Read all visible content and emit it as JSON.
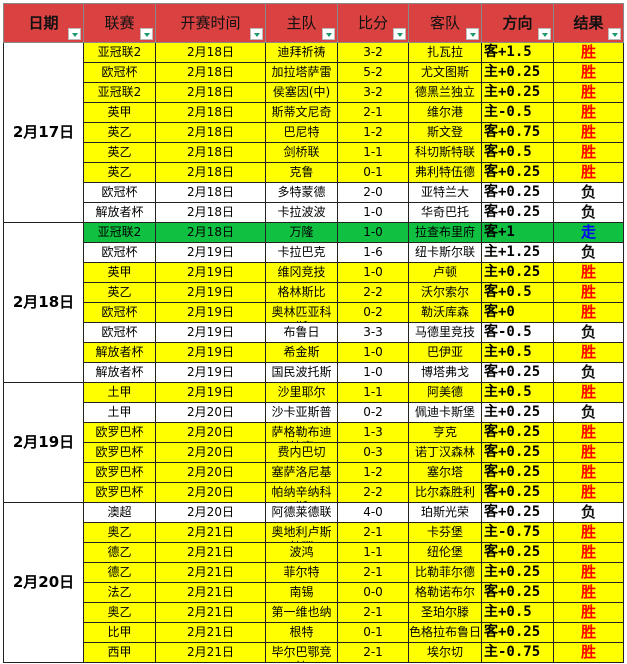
{
  "headers": [
    "日期",
    "联赛",
    "开赛时间",
    "主队",
    "比分",
    "客队",
    "方向",
    "结果"
  ],
  "colors": {
    "header": "#da4242",
    "win_row": "#ffff00",
    "lose_row": "#ffffff",
    "push_row": "#10c040",
    "win_text": "#ff0000",
    "push_text": "#0000ff"
  },
  "groups": [
    {
      "date": "2月17日",
      "rows": [
        {
          "league": "亚冠联2",
          "time": "2月18日",
          "home": "迪拜祈祷",
          "score": "3-2",
          "away": "扎瓦拉",
          "direction": "客+1.5",
          "result": "胜"
        },
        {
          "league": "欧冠杯",
          "time": "2月18日",
          "home": "加拉塔萨雷",
          "score": "5-2",
          "away": "尤文图斯",
          "direction": "主+0.25",
          "result": "胜"
        },
        {
          "league": "亚冠联2",
          "time": "2月18日",
          "home": "侯塞因(中)",
          "score": "3-2",
          "away": "德黑兰独立",
          "direction": "主+0.25",
          "result": "胜"
        },
        {
          "league": "英甲",
          "time": "2月18日",
          "home": "斯蒂文尼奇",
          "score": "2-1",
          "away": "维尔港",
          "direction": "主-0.5",
          "result": "胜"
        },
        {
          "league": "英乙",
          "time": "2月18日",
          "home": "巴尼特",
          "score": "1-2",
          "away": "斯文登",
          "direction": "客+0.75",
          "result": "胜"
        },
        {
          "league": "英乙",
          "time": "2月18日",
          "home": "剑桥联",
          "score": "1-1",
          "away": "科切斯特联",
          "direction": "客+0.5",
          "result": "胜"
        },
        {
          "league": "英乙",
          "time": "2月18日",
          "home": "克鲁",
          "score": "0-1",
          "away": "弗利特伍德",
          "direction": "客+0.25",
          "result": "胜"
        },
        {
          "league": "欧冠杯",
          "time": "2月18日",
          "home": "多特蒙德",
          "score": "2-0",
          "away": "亚特兰大",
          "direction": "客+0.25",
          "result": "负"
        },
        {
          "league": "解放者杯",
          "time": "2月18日",
          "home": "卡拉波波",
          "score": "1-0",
          "away": "华奇巴托",
          "direction": "客+0.25",
          "result": "负"
        }
      ]
    },
    {
      "date": "2月18日",
      "rows": [
        {
          "league": "亚冠联2",
          "time": "2月18日",
          "home": "万隆",
          "score": "1-0",
          "away": "拉查布里府",
          "direction": "客+1",
          "result": "走"
        },
        {
          "league": "欧冠杯",
          "time": "2月19日",
          "home": "卡拉巴克",
          "score": "1-6",
          "away": "纽卡斯尔联",
          "direction": "主+1.25",
          "result": "负"
        },
        {
          "league": "英甲",
          "time": "2月19日",
          "home": "维冈竞技",
          "score": "1-0",
          "away": "卢顿",
          "direction": "主+0.25",
          "result": "胜"
        },
        {
          "league": "英乙",
          "time": "2月19日",
          "home": "格林斯比",
          "score": "2-2",
          "away": "沃尔索尔",
          "direction": "客+0.5",
          "result": "胜"
        },
        {
          "league": "欧冠杯",
          "time": "2月19日",
          "home": "奥林匹亚科斯",
          "score": "0-2",
          "away": "勒沃库森",
          "direction": "客+0",
          "result": "胜"
        },
        {
          "league": "欧冠杯",
          "time": "2月19日",
          "home": "布鲁日",
          "score": "3-3",
          "away": "马德里竞技",
          "direction": "客-0.5",
          "result": "负"
        },
        {
          "league": "解放者杯",
          "time": "2月19日",
          "home": "希金斯",
          "score": "1-0",
          "away": "巴伊亚",
          "direction": "主+0.5",
          "result": "胜"
        },
        {
          "league": "解放者杯",
          "time": "2月19日",
          "home": "国民波托斯",
          "score": "1-0",
          "away": "博塔弗戈",
          "direction": "客+0.25",
          "result": "负"
        }
      ]
    },
    {
      "date": "2月19日",
      "rows": [
        {
          "league": "土甲",
          "time": "2月19日",
          "home": "沙里耶尔",
          "score": "1-1",
          "away": "阿美德",
          "direction": "主+0.5",
          "result": "胜"
        },
        {
          "league": "土甲",
          "time": "2月20日",
          "home": "沙卡亚斯普",
          "score": "0-2",
          "away": "佩迪卡斯堡",
          "direction": "主+0.25",
          "result": "负"
        },
        {
          "league": "欧罗巴杯",
          "time": "2月20日",
          "home": "萨格勒布迪纳摩",
          "score": "1-3",
          "away": "亨克",
          "direction": "客+0.25",
          "result": "胜"
        },
        {
          "league": "欧罗巴杯",
          "time": "2月20日",
          "home": "费内巴切",
          "score": "0-3",
          "away": "诺丁汉森林",
          "direction": "客+0.25",
          "result": "胜"
        },
        {
          "league": "欧罗巴杯",
          "time": "2月20日",
          "home": "塞萨洛尼基",
          "score": "1-2",
          "away": "塞尔塔",
          "direction": "客+0.25",
          "result": "胜"
        },
        {
          "league": "欧罗巴杯",
          "time": "2月20日",
          "home": "帕纳辛纳科斯",
          "score": "2-2",
          "away": "比尔森胜利",
          "direction": "客+0.25",
          "result": "胜"
        }
      ]
    },
    {
      "date": "2月20日",
      "rows": [
        {
          "league": "澳超",
          "time": "2月20日",
          "home": "阿德莱德联",
          "score": "4-0",
          "away": "珀斯光荣",
          "direction": "客+0.25",
          "result": "负"
        },
        {
          "league": "奥乙",
          "time": "2月21日",
          "home": "奥地利卢斯特瑙",
          "score": "2-1",
          "away": "卡芬堡",
          "direction": "主-0.75",
          "result": "胜"
        },
        {
          "league": "德乙",
          "time": "2月21日",
          "home": "波鸿",
          "score": "1-1",
          "away": "纽伦堡",
          "direction": "客+0.25",
          "result": "胜"
        },
        {
          "league": "德乙",
          "time": "2月21日",
          "home": "菲尔特",
          "score": "2-1",
          "away": "比勒菲尔德",
          "direction": "主+0.25",
          "result": "胜"
        },
        {
          "league": "法乙",
          "time": "2月21日",
          "home": "南锡",
          "score": "0-0",
          "away": "格勒诺布尔",
          "direction": "客+0.25",
          "result": "胜"
        },
        {
          "league": "奥乙",
          "time": "2月21日",
          "home": "第一维也纳",
          "score": "2-1",
          "away": "圣珀尔滕",
          "direction": "主+0.5",
          "result": "胜"
        },
        {
          "league": "比甲",
          "time": "2月21日",
          "home": "根特",
          "score": "0-1",
          "away": "色格拉布鲁日",
          "direction": "客+0.25",
          "result": "胜"
        },
        {
          "league": "西甲",
          "time": "2月21日",
          "home": "毕尔巴鄂竞技",
          "score": "2-1",
          "away": "埃尔切",
          "direction": "主-0.75",
          "result": "胜"
        }
      ]
    }
  ]
}
